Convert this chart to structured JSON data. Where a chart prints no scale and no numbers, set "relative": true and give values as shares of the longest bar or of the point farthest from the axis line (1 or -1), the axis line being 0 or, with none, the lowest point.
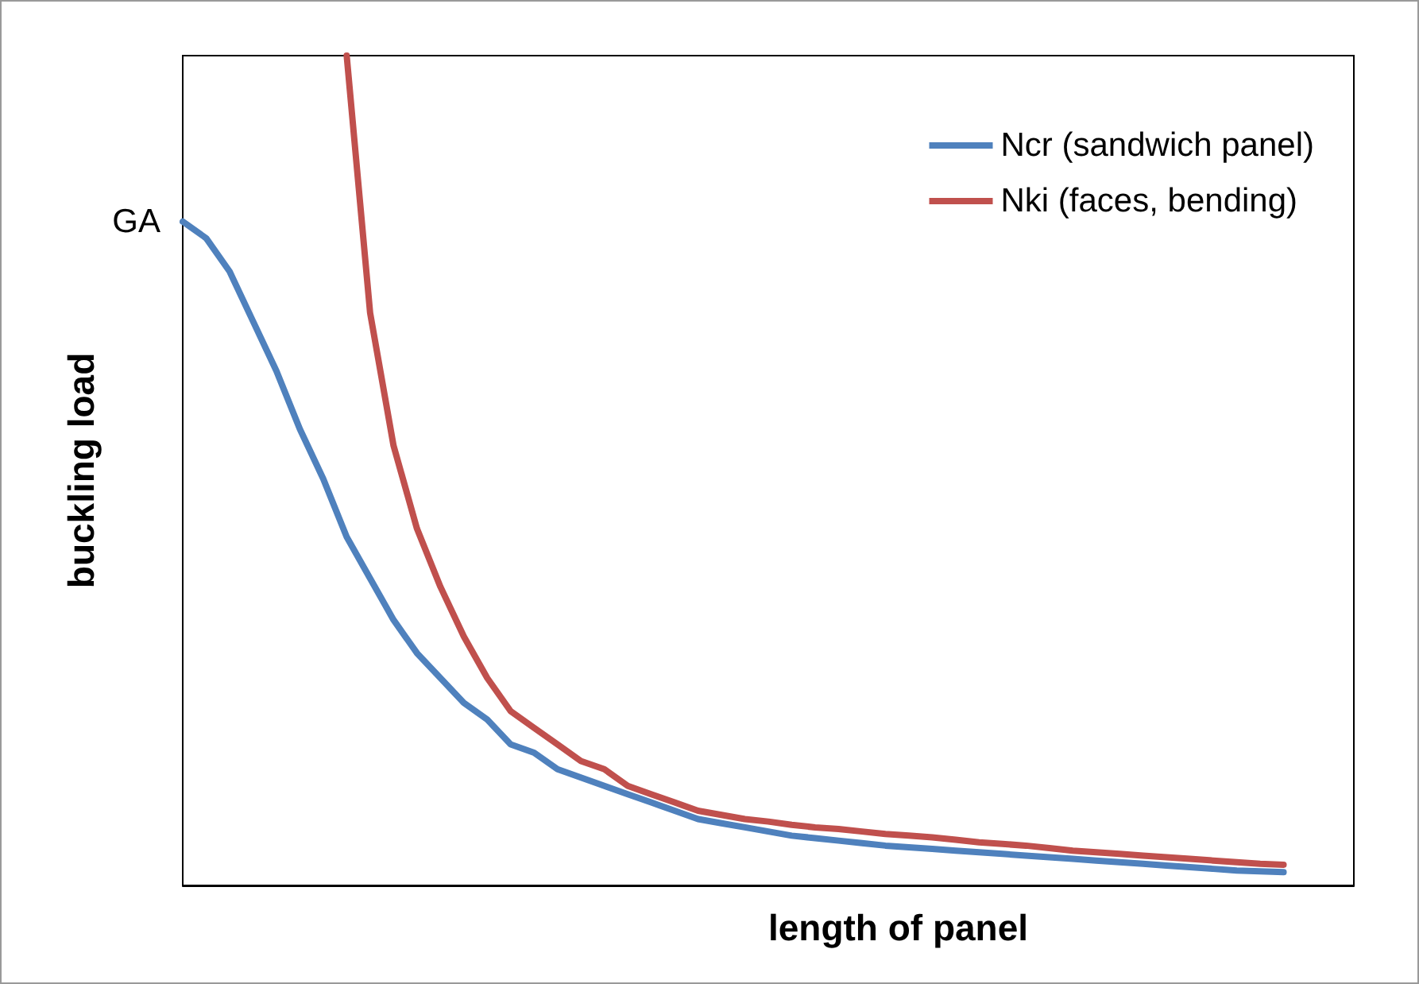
{
  "chart_data": {
    "type": "line",
    "relative": true,
    "xlabel": "length of panel",
    "ylabel": "buckling load",
    "legend": "top right",
    "grid": false,
    "marker": "none",
    "line_style": "solid",
    "annotations": [
      "GA"
    ],
    "categories": [
      null,
      null,
      null,
      null,
      null,
      null,
      null,
      null,
      null,
      null,
      null,
      null,
      null,
      null,
      null,
      null,
      null,
      null,
      null,
      null,
      null,
      null,
      null,
      null,
      null,
      null,
      null,
      null,
      null,
      null,
      null,
      null,
      null,
      null,
      null,
      null,
      null,
      null,
      null,
      null,
      null,
      null,
      null,
      null,
      null,
      null,
      null,
      null,
      null,
      null,
      null
    ],
    "series": [
      {
        "name": "Ncr (sandwich panel)",
        "color": "#4f81bd",
        "values": [
          0.8,
          0.78,
          0.74,
          0.68,
          0.62,
          0.55,
          0.49,
          0.42,
          0.37,
          0.32,
          0.28,
          0.25,
          0.22,
          0.2,
          0.17,
          0.16,
          0.14,
          0.13,
          0.12,
          0.11,
          0.1,
          0.09,
          0.08,
          0.075,
          0.07,
          0.065,
          0.06,
          0.057,
          0.054,
          0.051,
          0.048,
          0.046,
          0.044,
          0.042,
          0.04,
          0.038,
          0.036,
          0.034,
          0.032,
          0.03,
          0.028,
          0.026,
          0.024,
          0.022,
          0.02,
          0.018,
          0.017,
          0.016,
          null,
          null,
          null
        ]
      },
      {
        "name": "Nki (faces, bending)",
        "color": "#c0504d",
        "values": [
          null,
          null,
          null,
          null,
          null,
          null,
          null,
          1.0,
          0.69,
          0.53,
          0.43,
          0.36,
          0.3,
          0.25,
          0.21,
          0.19,
          0.17,
          0.15,
          0.14,
          0.12,
          0.11,
          0.1,
          0.09,
          0.085,
          0.08,
          0.077,
          0.073,
          0.07,
          0.068,
          0.065,
          0.062,
          0.06,
          0.058,
          0.055,
          0.052,
          0.05,
          0.048,
          0.045,
          0.042,
          0.04,
          0.038,
          0.036,
          0.034,
          0.032,
          0.03,
          0.028,
          0.026,
          0.025,
          null,
          null,
          null
        ]
      }
    ]
  }
}
